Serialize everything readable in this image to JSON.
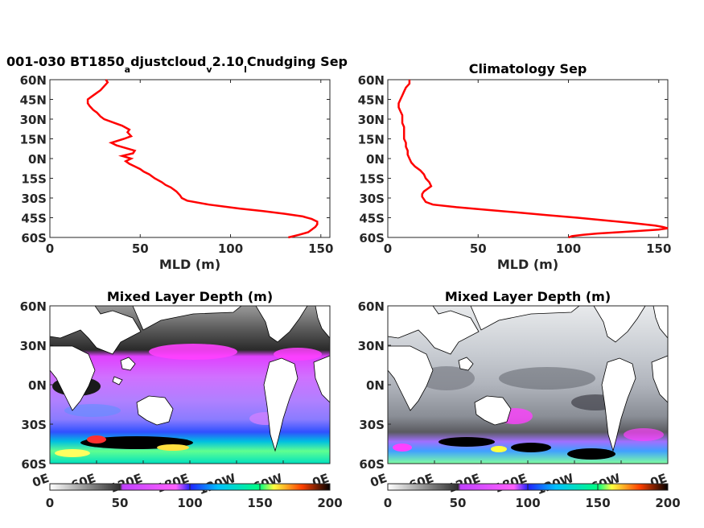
{
  "chart_data": [
    {
      "type": "line",
      "title": "001-030 BT1850",
      "title_sub1": "a",
      "title_mid1": "djustcloud",
      "title_sub2": "v",
      "title_mid2": "2.10",
      "title_sub3": "l",
      "title_end": "Cnudging Sep",
      "xlabel": "MLD (m)",
      "xlim": [
        0,
        155
      ],
      "ylim": [
        -60,
        60
      ],
      "xticks": [
        "0",
        "50",
        "100",
        "150"
      ],
      "yticks": [
        "60N",
        "45N",
        "30N",
        "15N",
        "0N",
        "15S",
        "30S",
        "45S",
        "60S"
      ],
      "color": "#ff0000",
      "series": [
        {
          "lat": [
            60,
            58,
            55,
            52,
            50,
            47,
            45,
            42,
            40,
            37,
            35,
            32,
            30,
            27,
            25,
            22,
            20,
            17,
            15,
            12,
            10,
            8,
            6,
            4,
            2,
            0,
            -2,
            -4,
            -6,
            -8,
            -10,
            -12,
            -15,
            -18,
            -20,
            -22,
            -25,
            -28,
            -30,
            -32,
            -35,
            -38,
            -40,
            -42,
            -44,
            -46,
            -48,
            -50,
            -52,
            -54,
            -56,
            -58,
            -60
          ],
          "mld": [
            31,
            32,
            30,
            28,
            26,
            23,
            21,
            21,
            22,
            24,
            26,
            28,
            30,
            36,
            40,
            44,
            43,
            45,
            41,
            34,
            37,
            42,
            47,
            46,
            40,
            45,
            42,
            44,
            47,
            50,
            52,
            55,
            58,
            62,
            64,
            67,
            70,
            72,
            73,
            76,
            88,
            105,
            118,
            130,
            140,
            145,
            148,
            148,
            147,
            145,
            143,
            138,
            132
          ]
        }
      ]
    },
    {
      "type": "line",
      "title": "Climatology Sep",
      "xlabel": "MLD (m)",
      "xlim": [
        0,
        155
      ],
      "ylim": [
        -60,
        60
      ],
      "xticks": [
        "0",
        "50",
        "100",
        "150"
      ],
      "yticks": [
        "60N",
        "45N",
        "30N",
        "15N",
        "0N",
        "15S",
        "30S",
        "45S",
        "60S"
      ],
      "color": "#ff0000",
      "series": [
        {
          "lat": [
            60,
            57,
            54,
            51,
            48,
            45,
            42,
            39,
            36,
            33,
            30,
            27,
            24,
            21,
            18,
            15,
            12,
            9,
            6,
            3,
            0,
            -3,
            -6,
            -9,
            -12,
            -15,
            -18,
            -21,
            -23,
            -25,
            -27,
            -29,
            -31,
            -33,
            -35,
            -37,
            -39,
            -41,
            -43,
            -45,
            -47,
            -49,
            -51,
            -52,
            -53,
            -54,
            -55,
            -56,
            -57,
            -58,
            -59,
            -60
          ],
          "mld": [
            12,
            12,
            10,
            9,
            8,
            7,
            6,
            6,
            7,
            8,
            8,
            8,
            9,
            9,
            9,
            9,
            10,
            10,
            11,
            11,
            12,
            13,
            15,
            18,
            20,
            21,
            23,
            24,
            22,
            20,
            19,
            19,
            20,
            21,
            25,
            38,
            55,
            72,
            88,
            105,
            120,
            135,
            148,
            152,
            155,
            150,
            140,
            128,
            116,
            108,
            102,
            100
          ]
        }
      ]
    },
    {
      "type": "heatmap",
      "title": "Mixed Layer Depth (m)",
      "xticks": [
        "0E",
        "60E",
        "120E",
        "180E",
        "120W",
        "60W",
        "0E"
      ],
      "yticks": [
        "60N",
        "30N",
        "0N",
        "30S",
        "60S"
      ],
      "colorbar_ticks": [
        "0",
        "50",
        "100",
        "150",
        "200"
      ],
      "colorbar_range": [
        0,
        200
      ],
      "colorbar_stops": [
        "#ffffff",
        "#000000",
        "#ff00ff",
        "#0000ff",
        "#00ffff",
        "#ffff00",
        "#ff0000",
        "#000000"
      ]
    },
    {
      "type": "heatmap",
      "title": "Mixed Layer Depth (m)",
      "xticks": [
        "0E",
        "60E",
        "120E",
        "180E",
        "120W",
        "60W",
        "0E"
      ],
      "yticks": [
        "60N",
        "30N",
        "0N",
        "30S",
        "60S"
      ],
      "colorbar_ticks": [
        "0",
        "50",
        "100",
        "150",
        "200"
      ],
      "colorbar_range": [
        0,
        200
      ],
      "colorbar_stops": [
        "#ffffff",
        "#000000",
        "#ff00ff",
        "#0000ff",
        "#00ffff",
        "#ffff00",
        "#ff0000",
        "#000000"
      ]
    }
  ]
}
